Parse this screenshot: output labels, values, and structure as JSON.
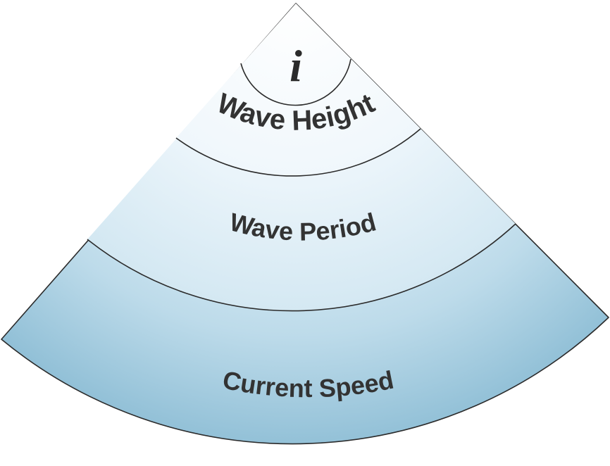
{
  "diagram": {
    "center_label": "i",
    "bands": [
      {
        "label": "Wave Height",
        "color_inner": "#ffffff",
        "color_outer": "#eaf4fa"
      },
      {
        "label": "Wave Period",
        "color_inner": "#eaf4fa",
        "color_outer": "#d0e6f1"
      },
      {
        "label": "Current Speed",
        "color_inner": "#bddbea",
        "color_outer": "#8bbcd4"
      }
    ],
    "line_color": "#2b2b2b",
    "text_color": "#333333"
  }
}
